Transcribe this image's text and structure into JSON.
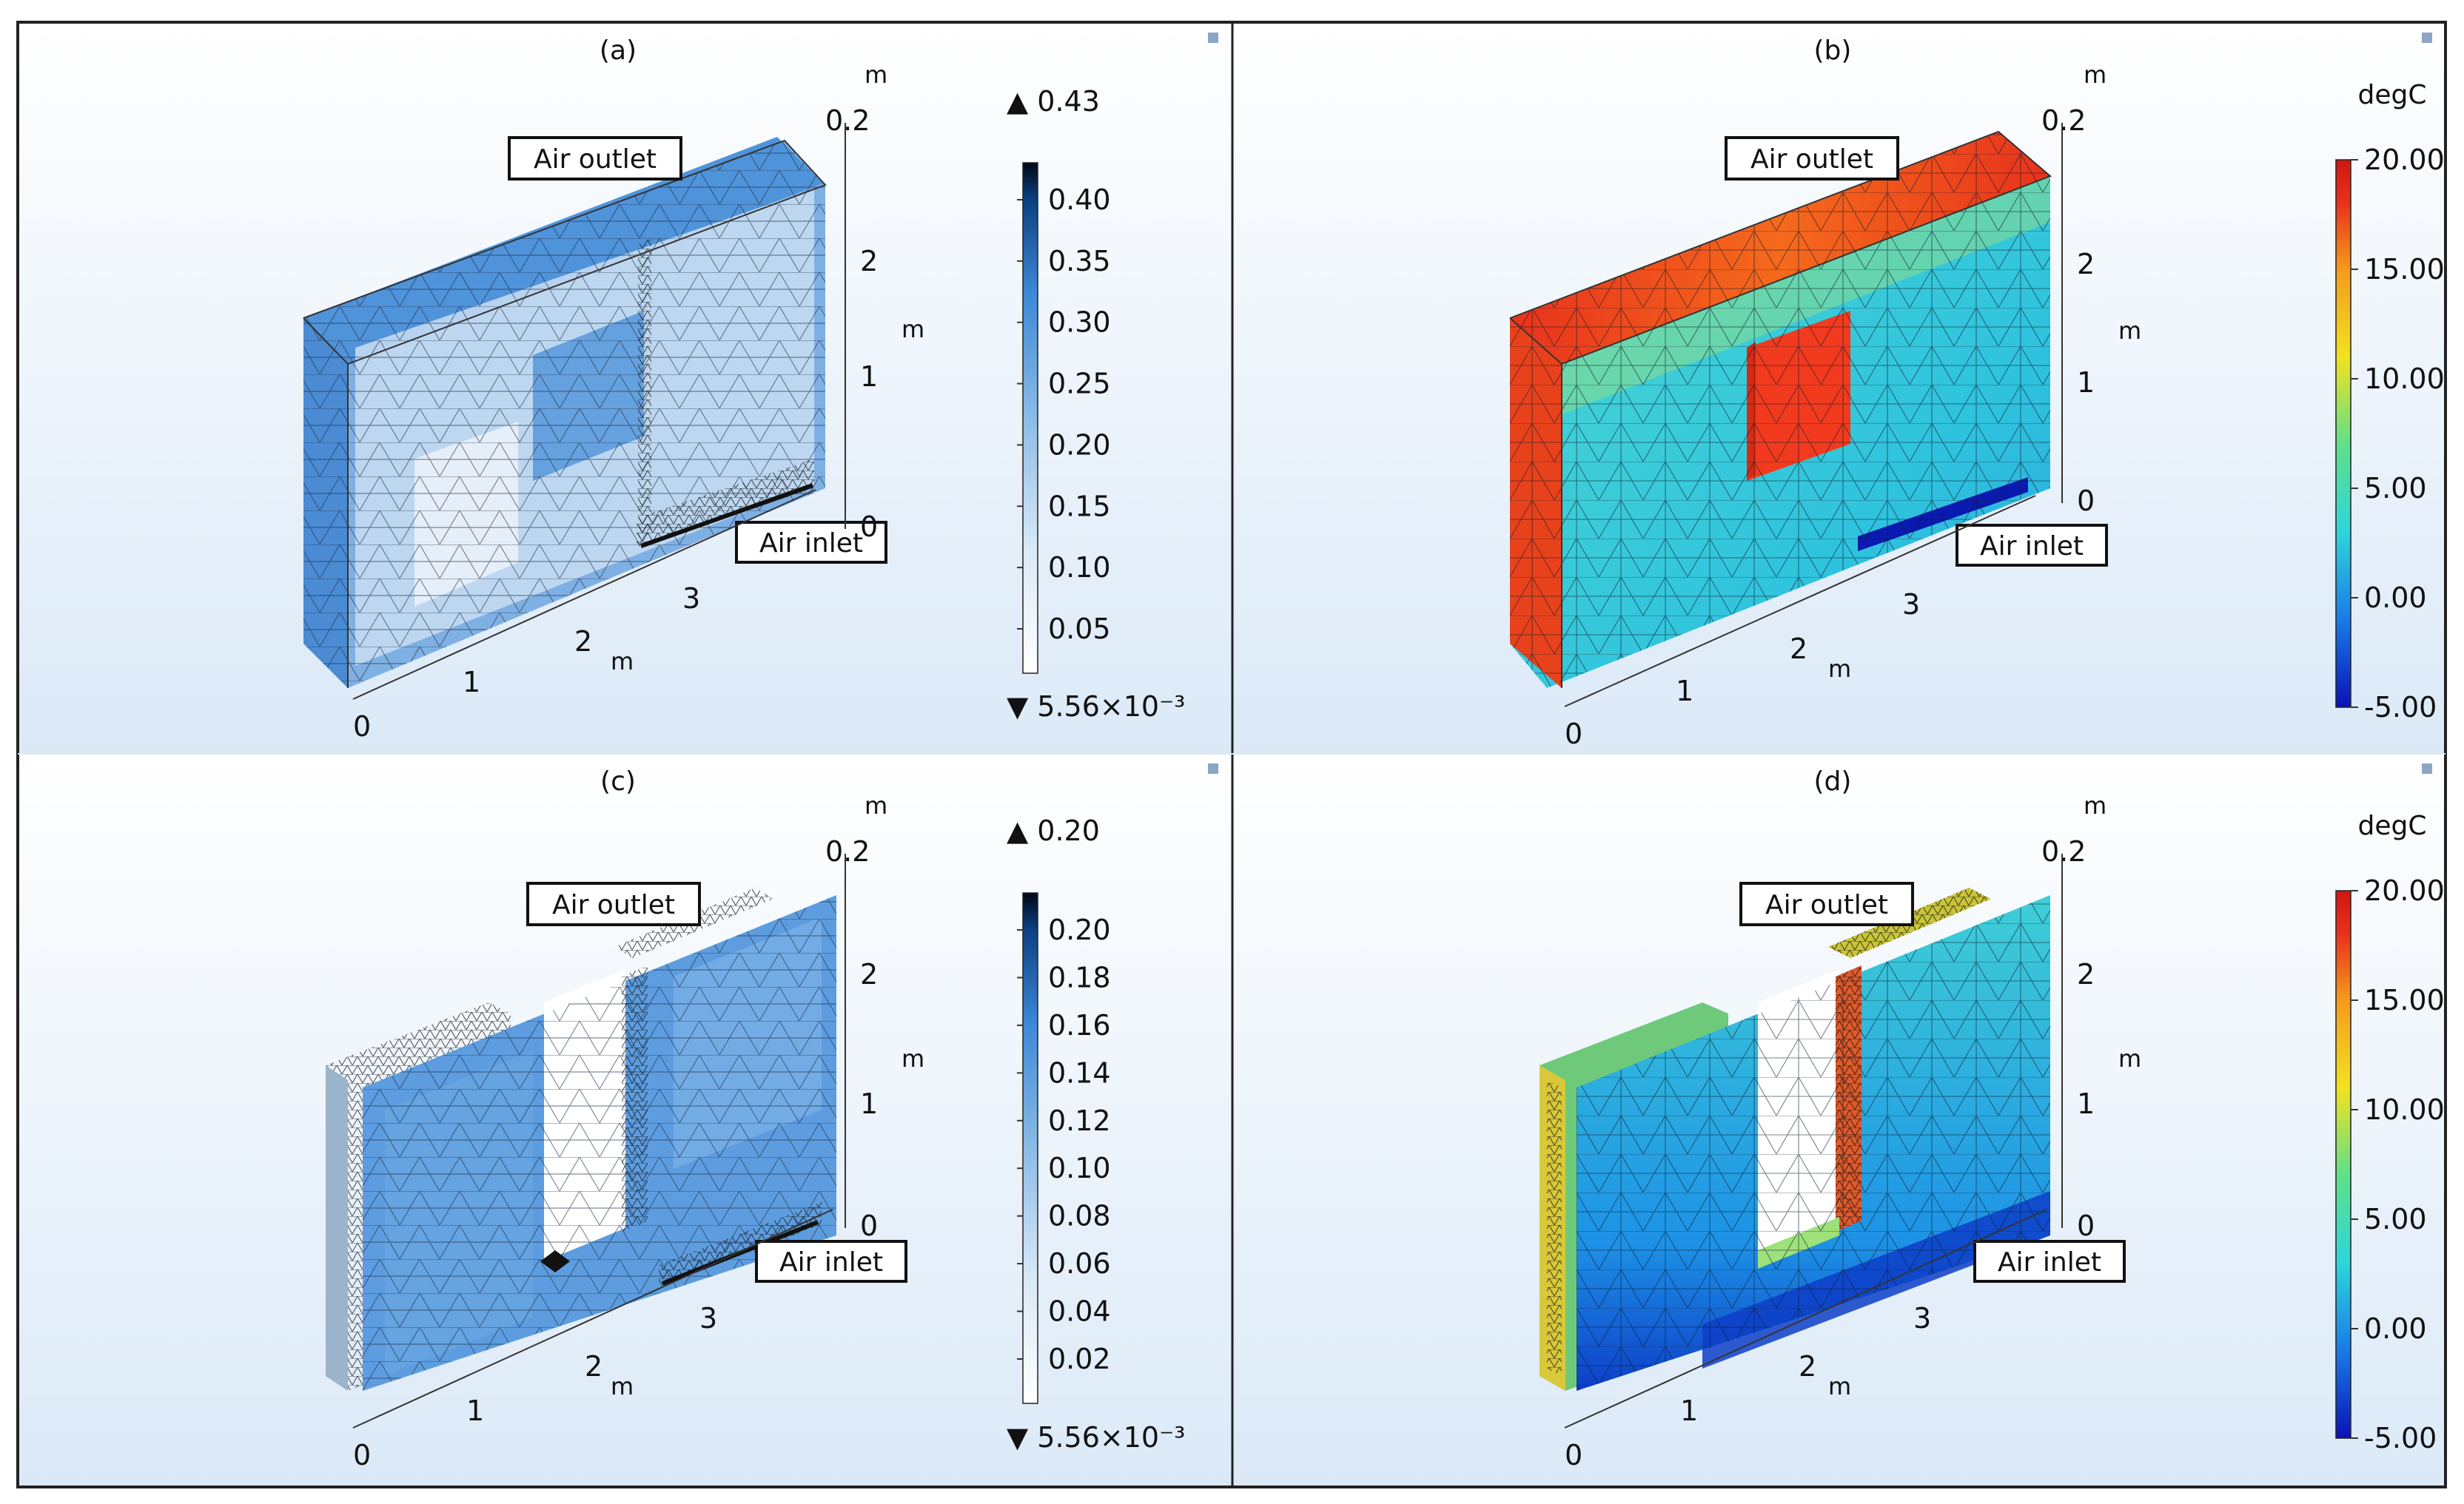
{
  "panels": [
    {
      "id": "a",
      "label": "(a)",
      "kind": "mesh-quality",
      "max_marker": "▲ 0.43",
      "min_marker": "▼ 5.56×10⁻³",
      "colorbar_unit": "",
      "colorbar_ticks": [
        "0.40",
        "0.35",
        "0.30",
        "0.25",
        "0.20",
        "0.15",
        "0.10",
        "0.05"
      ],
      "colorbar_colors": [
        "#ffffff",
        "#d7e8f6",
        "#8cbbe6",
        "#3b87d6",
        "#0b3f80",
        "#000814"
      ],
      "annotations": {
        "outlet": "Air outlet",
        "inlet": "Air inlet"
      },
      "axes": {
        "x_unit": "m",
        "x_ticks": [
          "0",
          "1",
          "2",
          "3"
        ],
        "y_unit": "m",
        "y_ticks": [
          "0",
          "1",
          "2"
        ],
        "z_unit": "m",
        "z_ticks": [
          "0.2"
        ]
      }
    },
    {
      "id": "b",
      "label": "(b)",
      "kind": "temperature",
      "max_marker": "",
      "min_marker": "",
      "colorbar_unit": "degC",
      "colorbar_ticks": [
        "20.00",
        "15.00",
        "10.00",
        "5.00",
        "0.00",
        "-5.00"
      ],
      "colorbar_colors": [
        "#0a12b8",
        "#1a7be8",
        "#2cd6dc",
        "#5ee08a",
        "#f2e21e",
        "#f59a1c",
        "#e8321c",
        "#d1160f"
      ],
      "annotations": {
        "outlet": "Air outlet",
        "inlet": "Air inlet"
      },
      "axes": {
        "x_unit": "m",
        "x_ticks": [
          "0",
          "1",
          "2",
          "3"
        ],
        "y_unit": "m",
        "y_ticks": [
          "0",
          "1",
          "2"
        ],
        "z_unit": "m",
        "z_ticks": [
          "0.2"
        ]
      }
    },
    {
      "id": "c",
      "label": "(c)",
      "kind": "mesh-quality",
      "max_marker": "▲ 0.20",
      "min_marker": "▼ 5.56×10⁻³",
      "colorbar_unit": "",
      "colorbar_ticks": [
        "0.20",
        "0.18",
        "0.16",
        "0.14",
        "0.12",
        "0.10",
        "0.08",
        "0.06",
        "0.04",
        "0.02"
      ],
      "colorbar_colors": [
        "#ffffff",
        "#d7e8f6",
        "#8cbbe6",
        "#3b87d6",
        "#0b3f80",
        "#000814"
      ],
      "annotations": {
        "outlet": "Air outlet",
        "inlet": "Air inlet"
      },
      "axes": {
        "x_unit": "m",
        "x_ticks": [
          "0",
          "1",
          "2",
          "3"
        ],
        "y_unit": "m",
        "y_ticks": [
          "0",
          "1",
          "2"
        ],
        "z_unit": "m",
        "z_ticks": [
          "0.2"
        ]
      }
    },
    {
      "id": "d",
      "label": "(d)",
      "kind": "temperature",
      "max_marker": "",
      "min_marker": "",
      "colorbar_unit": "degC",
      "colorbar_ticks": [
        "20.00",
        "15.00",
        "10.00",
        "5.00",
        "0.00",
        "-5.00"
      ],
      "colorbar_colors": [
        "#0a12b8",
        "#1a7be8",
        "#2cd6dc",
        "#5ee08a",
        "#f2e21e",
        "#f59a1c",
        "#e8321c",
        "#d1160f"
      ],
      "annotations": {
        "outlet": "Air outlet",
        "inlet": "Air inlet"
      },
      "axes": {
        "x_unit": "m",
        "x_ticks": [
          "0",
          "1",
          "2",
          "3"
        ],
        "y_unit": "m",
        "y_ticks": [
          "0",
          "1",
          "2"
        ],
        "z_unit": "m",
        "z_ticks": [
          "0.2"
        ]
      }
    }
  ]
}
